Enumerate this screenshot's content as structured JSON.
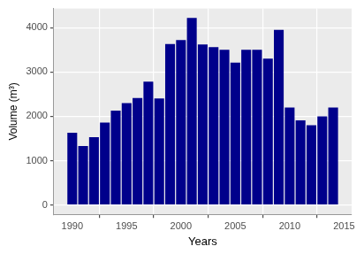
{
  "chart_data": {
    "type": "bar",
    "x_label": "Years",
    "y_label": "Volume (m³)",
    "x": [
      1990,
      1991,
      1992,
      1993,
      1994,
      1995,
      1996,
      1997,
      1998,
      1999,
      2000,
      2001,
      2002,
      2003,
      2004,
      2005,
      2006,
      2007,
      2008,
      2009,
      2010,
      2011,
      2012,
      2013,
      2014
    ],
    "values": [
      1630,
      1330,
      1530,
      1860,
      2130,
      2300,
      2410,
      2780,
      2400,
      3630,
      3720,
      4220,
      3620,
      3560,
      3500,
      3210,
      3500,
      3500,
      3300,
      3950,
      2200,
      1910,
      1800,
      2000,
      2200
    ],
    "color": "#00008b",
    "xlim": [
      1988.3,
      2015.7
    ],
    "xticks": [
      1990,
      1995,
      2000,
      2005,
      2010,
      2015
    ],
    "ylim": [
      -211,
      4431
    ],
    "yticks": [
      0,
      1000,
      2000,
      3000,
      4000
    ],
    "grid": true
  }
}
